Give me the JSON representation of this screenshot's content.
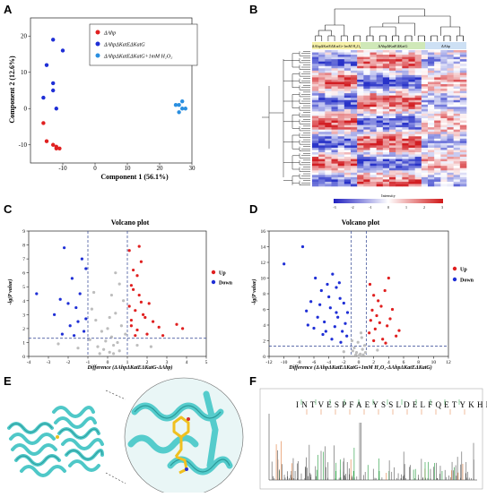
{
  "panels": {
    "A": {
      "letter": "A",
      "xlabel": "Component 1 (56.1%)",
      "ylabel": "Component 2 (12.6%)",
      "legend": [
        {
          "label": "ΔAhp",
          "color": "#e02020"
        },
        {
          "label": "ΔAhpΔKatEΔKatG",
          "color": "#1f2fd6"
        },
        {
          "label": "ΔAhpΔKatEΔKatG+1mM H₂O₂",
          "color": "#2a8fe0"
        }
      ]
    },
    "B": {
      "letter": "B",
      "groups": [
        "ΔAhpΔKatEΔKatG+1mM H₂O₂",
        "ΔAhpΔKatEΔKatG",
        "ΔAhp"
      ],
      "colorbar_title": "Intensity",
      "colorbar_ticks": [
        "-3",
        "-2",
        "-1",
        "0",
        "1",
        "2",
        "3"
      ]
    },
    "C": {
      "letter": "C",
      "title": "Volcano plot",
      "xlabel": "Difference (ΔAhpΔKatEΔKatG-ΔAhp)",
      "ylabel": "-lg(P value)",
      "legend": [
        {
          "label": "Up",
          "color": "#e02020"
        },
        {
          "label": "Down",
          "color": "#1f2fd6"
        }
      ]
    },
    "D": {
      "letter": "D",
      "title": "Volcano plot",
      "xlabel": "Difference (ΔAhpΔKatEΔKatG+1mM H₂O₂-ΔAhpΔKatEΔKatG)",
      "ylabel": "-lg(P value)",
      "legend": [
        {
          "label": "Up",
          "color": "#e02020"
        },
        {
          "label": "Down",
          "color": "#1f2fd6"
        }
      ]
    },
    "E": {
      "letter": "E"
    },
    "F": {
      "letter": "F",
      "peptide": "INTVESPFAEYSSLDELFQETYKHEQLITQK"
    }
  },
  "chart_data": [
    {
      "type": "scatter",
      "panel": "A",
      "xlabel": "Component 1 (56.1%)",
      "ylabel": "Component 2 (12.6%)",
      "xlim": [
        -20,
        30
      ],
      "ylim": [
        -15,
        25
      ],
      "xticks": [
        -10,
        0,
        10,
        20,
        30
      ],
      "yticks": [
        -10,
        0,
        10,
        20
      ],
      "series": [
        {
          "name": "ΔAhp",
          "color": "#e02020",
          "points": [
            [
              -16,
              -4
            ],
            [
              -15,
              -9
            ],
            [
              -13,
              -10
            ],
            [
              -12,
              -11
            ],
            [
              -12,
              -10.5
            ],
            [
              -11,
              -11
            ]
          ]
        },
        {
          "name": "ΔAhpΔKatEΔKatG",
          "color": "#1f2fd6",
          "points": [
            [
              -16,
              3
            ],
            [
              -15,
              12
            ],
            [
              -13,
              19
            ],
            [
              -13,
              7
            ],
            [
              -13,
              5
            ],
            [
              -12,
              0
            ],
            [
              -10,
              16
            ]
          ]
        },
        {
          "name": "ΔAhpΔKatEΔKatG+1mM H₂O₂",
          "color": "#2a8fe0",
          "points": [
            [
              25,
              1
            ],
            [
              26,
              -1
            ],
            [
              27,
              0
            ],
            [
              27,
              2
            ],
            [
              28,
              0
            ],
            [
              26,
              1
            ]
          ]
        }
      ]
    },
    {
      "type": "scatter",
      "panel": "C",
      "title": "Volcano plot",
      "xlabel": "Difference (ΔAhpΔKatEΔKatG-ΔAhp)",
      "ylabel": "-lg(P value)",
      "xlim": [
        -4,
        5
      ],
      "ylim": [
        0,
        9
      ],
      "xticks": [
        -4,
        -3,
        -2,
        -1,
        0,
        1,
        2,
        3,
        4,
        5
      ],
      "yticks": [
        0,
        1,
        2,
        3,
        4,
        5,
        6,
        7,
        8,
        9
      ],
      "fc_threshold": [
        -1,
        1
      ],
      "p_threshold": 1.3,
      "series": [
        {
          "name": "Up",
          "color": "#e02020",
          "points": [
            [
              1.1,
              7.6
            ],
            [
              1.3,
              6.2
            ],
            [
              1.5,
              5.8
            ],
            [
              1.2,
              5.1
            ],
            [
              1.6,
              4.4
            ],
            [
              2.1,
              3.8
            ],
            [
              1.4,
              3.3
            ],
            [
              1.8,
              3.0
            ],
            [
              2.3,
              2.5
            ],
            [
              1.2,
              2.2
            ],
            [
              1.5,
              1.9
            ],
            [
              2.6,
              2.1
            ],
            [
              1.9,
              2.8
            ],
            [
              3.5,
              2.3
            ],
            [
              1.3,
              4.8
            ],
            [
              1.7,
              6.8
            ],
            [
              1.1,
              3.6
            ],
            [
              2.0,
              1.6
            ],
            [
              1.4,
              1.5
            ],
            [
              3.8,
              2.0
            ],
            [
              1.6,
              7.9
            ],
            [
              1.2,
              2.6
            ],
            [
              1.7,
              3.9
            ],
            [
              2.8,
              1.5
            ]
          ]
        },
        {
          "name": "Down",
          "color": "#1f2fd6",
          "points": [
            [
              -2.2,
              7.8
            ],
            [
              -1.3,
              7.0
            ],
            [
              -1.8,
              5.6
            ],
            [
              -1.4,
              4.5
            ],
            [
              -2.4,
              4.1
            ],
            [
              -1.6,
              3.5
            ],
            [
              -1.1,
              2.7
            ],
            [
              -2.7,
              3.0
            ],
            [
              -3.6,
              4.5
            ],
            [
              -1.9,
              2.2
            ],
            [
              -1.2,
              1.8
            ],
            [
              -2.3,
              1.6
            ],
            [
              -1.5,
              2.5
            ],
            [
              -1.1,
              6.3
            ],
            [
              -2.0,
              3.8
            ],
            [
              -1.7,
              1.5
            ]
          ]
        },
        {
          "name": "NS",
          "color": "#bdbdbd",
          "points": [
            [
              0.1,
              0.3
            ],
            [
              -0.2,
              0.5
            ],
            [
              0.3,
              0.8
            ],
            [
              0.5,
              1.0
            ],
            [
              -0.5,
              0.7
            ],
            [
              0.2,
              1.4
            ],
            [
              -0.3,
              1.8
            ],
            [
              0.7,
              2.2
            ],
            [
              -0.6,
              2.6
            ],
            [
              0.4,
              3.1
            ],
            [
              0.8,
              4.0
            ],
            [
              -0.8,
              3.4
            ],
            [
              0.6,
              5.2
            ],
            [
              0.0,
              2.0
            ],
            [
              -0.1,
              1.1
            ],
            [
              0.9,
              1.6
            ],
            [
              -0.9,
              1.2
            ],
            [
              0.3,
              0.2
            ],
            [
              -0.4,
              0.2
            ],
            [
              0.6,
              0.4
            ],
            [
              0.1,
              2.8
            ],
            [
              -0.7,
              4.6
            ],
            [
              0.4,
              6.0
            ],
            [
              -1.5,
              0.6
            ],
            [
              1.5,
              0.8
            ],
            [
              -2.5,
              0.9
            ],
            [
              2.2,
              0.7
            ],
            [
              0.2,
              4.4
            ]
          ]
        }
      ]
    },
    {
      "type": "scatter",
      "panel": "D",
      "title": "Volcano plot",
      "xlabel": "Difference (ΔAhpΔKatEΔKatG+1mM H₂O₂-ΔAhpΔKatEΔKatG)",
      "ylabel": "-lg(P value)",
      "xlim": [
        -12,
        12
      ],
      "ylim": [
        0,
        16
      ],
      "xticks": [
        -12,
        -10,
        -8,
        -6,
        -4,
        -2,
        0,
        2,
        4,
        6,
        8,
        10,
        12
      ],
      "yticks": [
        0,
        2,
        4,
        6,
        8,
        10,
        12,
        14,
        16
      ],
      "fc_threshold": [
        -1,
        1
      ],
      "p_threshold": 1.3,
      "series": [
        {
          "name": "Up",
          "color": "#e02020",
          "points": [
            [
              1.5,
              9.2
            ],
            [
              2.0,
              7.8
            ],
            [
              2.6,
              7.1
            ],
            [
              3.0,
              6.4
            ],
            [
              3.5,
              8.4
            ],
            [
              1.8,
              5.9
            ],
            [
              2.4,
              5.2
            ],
            [
              4.2,
              4.8
            ],
            [
              3.8,
              3.9
            ],
            [
              2.2,
              3.5
            ],
            [
              1.4,
              3.0
            ],
            [
              5.0,
              2.6
            ],
            [
              4.5,
              6.0
            ],
            [
              3.2,
              2.2
            ],
            [
              2.8,
              4.3
            ],
            [
              1.6,
              4.6
            ],
            [
              4.0,
              10.0
            ],
            [
              2.0,
              2.0
            ],
            [
              3.6,
              1.7
            ],
            [
              5.4,
              3.3
            ]
          ]
        },
        {
          "name": "Down",
          "color": "#1f2fd6",
          "points": [
            [
              -10.0,
              11.8
            ],
            [
              -7.5,
              14.0
            ],
            [
              -5.8,
              10.0
            ],
            [
              -5.0,
              8.4
            ],
            [
              -4.2,
              9.2
            ],
            [
              -3.5,
              10.5
            ],
            [
              -3.0,
              8.8
            ],
            [
              -2.5,
              7.4
            ],
            [
              -2.0,
              6.8
            ],
            [
              -1.5,
              5.6
            ],
            [
              -6.4,
              7.0
            ],
            [
              -7.0,
              5.8
            ],
            [
              -5.5,
              5.0
            ],
            [
              -4.6,
              4.4
            ],
            [
              -3.8,
              6.2
            ],
            [
              -3.2,
              3.8
            ],
            [
              -2.8,
              5.0
            ],
            [
              -2.2,
              3.2
            ],
            [
              -1.6,
              2.6
            ],
            [
              -6.0,
              3.6
            ],
            [
              -4.8,
              2.8
            ],
            [
              -5.2,
              6.6
            ],
            [
              -3.6,
              2.2
            ],
            [
              -2.4,
              1.8
            ],
            [
              -4.0,
              7.6
            ],
            [
              -6.8,
              4.0
            ],
            [
              -1.8,
              4.2
            ],
            [
              -3.0,
              5.6
            ],
            [
              -4.4,
              3.2
            ],
            [
              -2.6,
              9.4
            ]
          ]
        },
        {
          "name": "NS",
          "color": "#bdbdbd",
          "points": [
            [
              0.2,
              0.3
            ],
            [
              -0.3,
              0.5
            ],
            [
              0.5,
              0.9
            ],
            [
              -0.6,
              1.1
            ],
            [
              0.8,
              1.4
            ],
            [
              -0.1,
              1.8
            ],
            [
              0.4,
              2.4
            ],
            [
              -0.8,
              0.7
            ],
            [
              0.0,
              0.1
            ],
            [
              0.6,
              0.2
            ],
            [
              -0.4,
              0.2
            ],
            [
              -2.0,
              0.6
            ],
            [
              2.5,
              0.8
            ],
            [
              0.9,
              0.5
            ],
            [
              -0.9,
              2.0
            ],
            [
              0.3,
              3.0
            ]
          ]
        }
      ]
    }
  ]
}
